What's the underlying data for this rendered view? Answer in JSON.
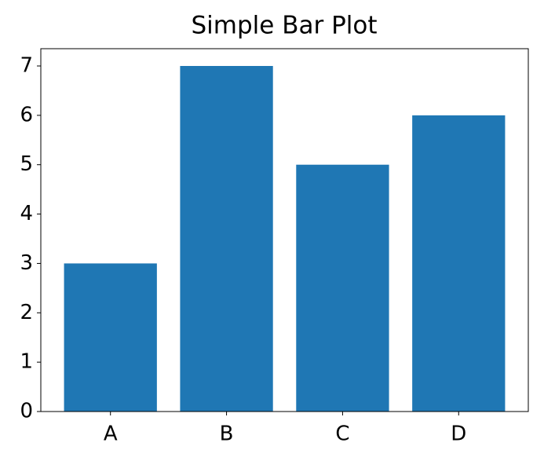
{
  "chart_data": {
    "type": "bar",
    "title": "Simple Bar Plot",
    "categories": [
      "A",
      "B",
      "C",
      "D"
    ],
    "values": [
      3,
      7,
      5,
      6
    ],
    "color": "#1f77b4",
    "ylim": [
      0,
      7.35
    ],
    "yticks": [
      0,
      1,
      2,
      3,
      4,
      5,
      6,
      7
    ],
    "grid": false
  }
}
